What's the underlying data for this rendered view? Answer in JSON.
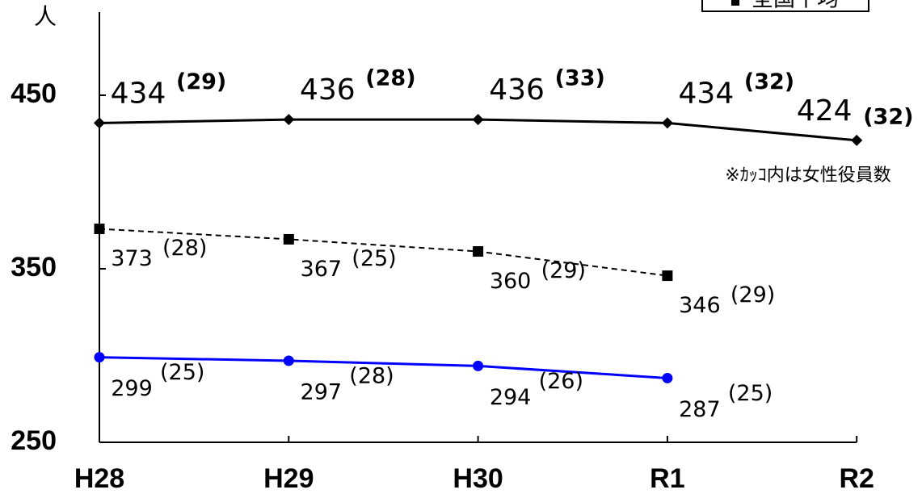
{
  "chart_data": {
    "type": "line",
    "y_label": "人",
    "annotation": "※ｶｯｺ内は女性役員数",
    "categories": [
      "H28",
      "H29",
      "H30",
      "R1",
      "R2"
    ],
    "ylim": [
      250,
      500
    ],
    "yticks": [
      250,
      350,
      450
    ],
    "legend_position": "upper right",
    "series": [
      {
        "color": "#000000",
        "dash": "solid",
        "marker": "diamond",
        "values": [
          434,
          436,
          436,
          434,
          424
        ],
        "female_labels": [
          "(29)",
          "(28)",
          "(33)",
          "(32)",
          "(32)"
        ]
      },
      {
        "name": "全国平均",
        "color": "#000000",
        "dash": "dashed",
        "marker": "square",
        "values": [
          373,
          367,
          360,
          346,
          null
        ],
        "female_labels": [
          "(28)",
          "(25)",
          "(29)",
          "(29)",
          null
        ]
      },
      {
        "color": "#0000ff",
        "dash": "solid",
        "marker": "circle",
        "values": [
          299,
          297,
          294,
          287,
          null
        ],
        "female_labels": [
          "(25)",
          "(28)",
          "(26)",
          "(25)",
          null
        ]
      }
    ]
  }
}
